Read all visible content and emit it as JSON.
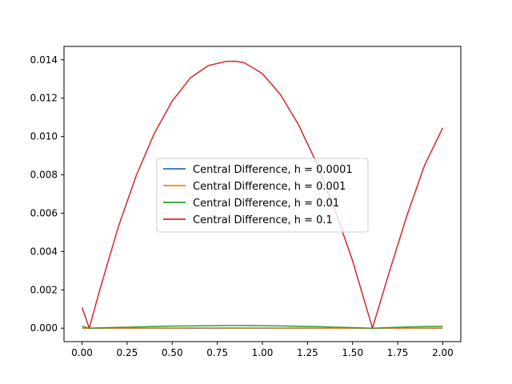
{
  "chart_data": {
    "type": "line",
    "title": "",
    "xlabel": "",
    "ylabel": "",
    "xlim": [
      -0.1,
      2.1
    ],
    "ylim": [
      -0.0007,
      0.0147
    ],
    "grid": false,
    "legend_position": "center",
    "x_ticks": [
      0.0,
      0.25,
      0.5,
      0.75,
      1.0,
      1.25,
      1.5,
      1.75,
      2.0
    ],
    "x_tick_labels": [
      "0.00",
      "0.25",
      "0.50",
      "0.75",
      "1.00",
      "1.25",
      "1.50",
      "1.75",
      "2.00"
    ],
    "y_ticks": [
      0.0,
      0.002,
      0.004,
      0.006,
      0.008,
      0.01,
      0.012,
      0.014
    ],
    "y_tick_labels": [
      "0.000",
      "0.002",
      "0.004",
      "0.006",
      "0.008",
      "0.010",
      "0.012",
      "0.014"
    ],
    "x": [
      0.0,
      0.04,
      0.1,
      0.2,
      0.3,
      0.4,
      0.5,
      0.6,
      0.7,
      0.8,
      0.85,
      0.9,
      1.0,
      1.1,
      1.2,
      1.3,
      1.4,
      1.5,
      1.6,
      1.61,
      1.7,
      1.8,
      1.9,
      2.0
    ],
    "series": [
      {
        "name": "Central Difference, h = 0.0001",
        "color": "#1f77b4",
        "values": [
          0.0,
          0.0,
          0.0,
          0.0,
          0.0,
          0.0,
          0.0,
          0.0,
          0.0,
          0.0,
          0.0,
          0.0,
          0.0,
          0.0,
          0.0,
          0.0,
          0.0,
          0.0,
          0.0,
          0.0,
          0.0,
          0.0,
          0.0,
          0.0
        ]
      },
      {
        "name": "Central Difference, h = 0.001",
        "color": "#ff7f0e",
        "values": [
          1e-05,
          0.0,
          4e-06,
          6e-06,
          8e-06,
          1e-05,
          1.2e-05,
          1.3e-05,
          1.4e-05,
          1.4e-05,
          1.4e-05,
          1.4e-05,
          1.3e-05,
          1.2e-05,
          1e-05,
          8e-06,
          5e-06,
          3e-06,
          0.0,
          0.0,
          3e-06,
          6e-06,
          8e-06,
          1e-05
        ]
      },
      {
        "name": "Central Difference, h = 0.01",
        "color": "#2ca02c",
        "values": [
          0.0001,
          0.0,
          2e-05,
          4e-05,
          6e-05,
          9e-05,
          0.00011,
          0.00012,
          0.00013,
          0.00014,
          0.00014,
          0.00014,
          0.00013,
          0.00012,
          0.0001,
          8e-05,
          5e-05,
          3e-05,
          0.0,
          0.0,
          3e-05,
          6e-05,
          8e-05,
          0.0001
        ]
      },
      {
        "name": "Central Difference, h = 0.1",
        "color": "#d62728",
        "values": [
          0.00108,
          0.0,
          0.00205,
          0.00525,
          0.00795,
          0.01015,
          0.01185,
          0.01305,
          0.0137,
          0.01392,
          0.01393,
          0.01385,
          0.01328,
          0.01219,
          0.01062,
          0.00862,
          0.00623,
          0.00352,
          0.00033,
          0.0,
          0.00282,
          0.00584,
          0.00852,
          0.01045
        ]
      }
    ]
  }
}
